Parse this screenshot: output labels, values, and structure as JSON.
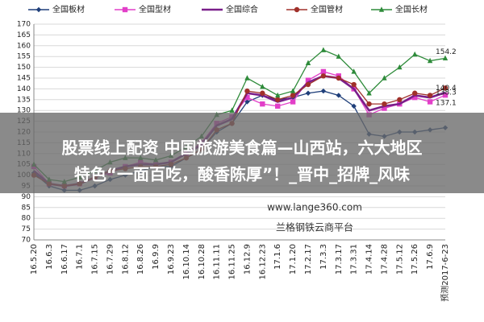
{
  "chart_data": {
    "type": "line",
    "categories": [
      "16.5.20",
      "16.6.3",
      "16.6.17",
      "16.7.1",
      "16.7.15",
      "16.7.29",
      "16.8.12",
      "16.8.26",
      "16.9.9",
      "16.9.23",
      "16.10.14",
      "16.10.28",
      "16.11.11",
      "16.11.25",
      "16.12.9",
      "16.12.23",
      "17.1.6",
      "17.1.20",
      "17.2.17",
      "17.3.3",
      "17.3.17",
      "17.3.31",
      "17.4.14",
      "17.4.28",
      "17.5.12",
      "17.5.26",
      "17.6.9",
      "预测2017-6-23"
    ],
    "series": [
      {
        "name": "全国板材",
        "color": "#1f3f7a",
        "marker": "diamond",
        "values": [
          101,
          95,
          93,
          93,
          95,
          98,
          100,
          102,
          104,
          104,
          108,
          112,
          120,
          124,
          134,
          137,
          135,
          136,
          138,
          139,
          137,
          132,
          119,
          118,
          120,
          120,
          121,
          122
        ]
      },
      {
        "name": "全国型材",
        "color": "#e23fc8",
        "marker": "square",
        "values": [
          104,
          96,
          95,
          96,
          99,
          101,
          104,
          106,
          105,
          106,
          110,
          115,
          124,
          127,
          136,
          133,
          132,
          134,
          144,
          148,
          146,
          140,
          128,
          131,
          133,
          136,
          134,
          137.1
        ]
      },
      {
        "name": "全国综合",
        "color": "#7a1f8a",
        "marker": "none",
        "values": [
          102,
          96,
          95,
          96,
          99,
          102,
          104,
          105,
          105,
          106,
          110,
          114,
          123,
          126,
          138,
          137,
          134,
          136,
          143,
          146,
          145,
          140,
          130,
          132,
          133,
          137,
          136,
          138.3
        ]
      },
      {
        "name": "全国管材",
        "color": "#a0302a",
        "marker": "circle",
        "values": [
          100,
          96,
          95,
          96,
          99,
          102,
          103,
          104,
          104,
          105,
          108,
          112,
          121,
          124,
          139,
          138,
          135,
          137,
          142,
          146,
          145,
          142,
          133,
          133,
          135,
          138,
          137,
          140.4
        ]
      },
      {
        "name": "全国长材",
        "color": "#2e8b3a",
        "marker": "triangle",
        "values": [
          105,
          98,
          97,
          99,
          102,
          106,
          108,
          108,
          107,
          109,
          113,
          118,
          128,
          130,
          145,
          141,
          137,
          139,
          152,
          158,
          155,
          148,
          138,
          145,
          150,
          156,
          153,
          154.2
        ]
      }
    ],
    "ylim": [
      70,
      170
    ],
    "yticks": [
      70,
      75,
      80,
      85,
      90,
      95,
      100,
      105,
      110,
      115,
      120,
      125,
      130,
      135,
      140,
      145,
      150,
      155,
      160,
      165,
      170
    ],
    "grid": true,
    "legend": "top",
    "watermarks": [
      "www.lange360.com",
      "兰格钢铁云商平台"
    ]
  },
  "banner": {
    "lines": [
      "股票线上配资 中国旅游美食篇—山西站，六大地区",
      "特色“一面百吃，酸香陈厚”！_晋中_招牌_风味"
    ]
  }
}
